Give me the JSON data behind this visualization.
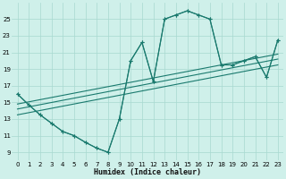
{
  "bg_color": "#cff0ea",
  "grid_color": "#a8d8d0",
  "line_color": "#1a7a6e",
  "xlabel": "Humidex (Indice chaleur)",
  "xlim": [
    -0.5,
    23.5
  ],
  "ylim": [
    8.0,
    27.0
  ],
  "xticks": [
    0,
    1,
    2,
    3,
    4,
    5,
    6,
    7,
    8,
    9,
    10,
    11,
    12,
    13,
    14,
    15,
    16,
    17,
    18,
    19,
    20,
    21,
    22,
    23
  ],
  "yticks": [
    9,
    11,
    13,
    15,
    17,
    19,
    21,
    23,
    25
  ],
  "curve1_x": [
    0,
    1,
    2,
    3,
    4,
    5,
    6,
    7,
    8,
    9,
    10,
    11,
    12,
    13,
    14,
    15,
    16,
    17,
    18,
    19,
    20,
    21,
    22,
    23
  ],
  "curve1_y": [
    16.0,
    14.7,
    13.5,
    12.5,
    11.5,
    11.0,
    10.2,
    9.5,
    9.0,
    13.0,
    20.0,
    22.2,
    17.5,
    25.0,
    25.5,
    26.0,
    25.5,
    25.0,
    19.5,
    19.5,
    20.0,
    20.5,
    18.0,
    22.5
  ],
  "curve2_x": [
    0,
    1,
    2,
    3,
    4,
    5,
    6,
    7,
    8,
    9,
    10,
    11,
    12,
    13,
    14,
    15,
    16,
    17,
    18,
    19,
    20,
    21,
    22,
    23
  ],
  "curve2_y": [
    16.0,
    14.7,
    13.5,
    12.5,
    11.5,
    11.0,
    10.2,
    9.5,
    9.0,
    13.0,
    20.0,
    22.2,
    17.5,
    25.0,
    25.5,
    26.0,
    25.5,
    25.0,
    19.5,
    19.5,
    20.0,
    20.5,
    18.0,
    22.5
  ],
  "trend1_x": [
    0,
    23
  ],
  "trend1_y": [
    14.8,
    20.8
  ],
  "trend2_x": [
    0,
    23
  ],
  "trend2_y": [
    14.2,
    20.2
  ],
  "trend3_x": [
    0,
    23
  ],
  "trend3_y": [
    13.5,
    19.5
  ]
}
